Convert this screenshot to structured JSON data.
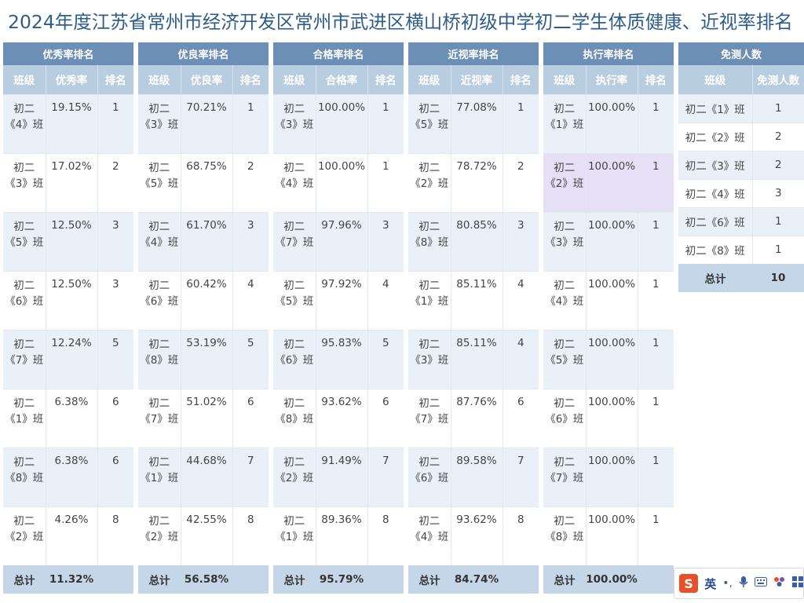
{
  "title": "2024年度江苏省常州市经济开发区常州市武进区横山桥初级中学初二学生体质健康、近视率排名",
  "panels": [
    {
      "title": "优秀率排名",
      "col_class": "班级",
      "col_value": "优秀率",
      "col_rank": "排名",
      "rows": [
        {
          "cls": "初二《4》班",
          "value": "19.15%",
          "rank": "1"
        },
        {
          "cls": "初二《3》班",
          "value": "17.02%",
          "rank": "2"
        },
        {
          "cls": "初二《5》班",
          "value": "12.50%",
          "rank": "3"
        },
        {
          "cls": "初二《6》班",
          "value": "12.50%",
          "rank": "3"
        },
        {
          "cls": "初二《7》班",
          "value": "12.24%",
          "rank": "5"
        },
        {
          "cls": "初二《1》班",
          "value": "6.38%",
          "rank": "6"
        },
        {
          "cls": "初二《8》班",
          "value": "6.38%",
          "rank": "6"
        },
        {
          "cls": "初二《2》班",
          "value": "4.26%",
          "rank": "8"
        }
      ],
      "total_label": "总计",
      "total_value": "11.32%"
    },
    {
      "title": "优良率排名",
      "col_class": "班级",
      "col_value": "优良率",
      "col_rank": "排名",
      "rows": [
        {
          "cls": "初二《3》班",
          "value": "70.21%",
          "rank": "1"
        },
        {
          "cls": "初二《5》班",
          "value": "68.75%",
          "rank": "2"
        },
        {
          "cls": "初二《4》班",
          "value": "61.70%",
          "rank": "3"
        },
        {
          "cls": "初二《6》班",
          "value": "60.42%",
          "rank": "4"
        },
        {
          "cls": "初二《8》班",
          "value": "53.19%",
          "rank": "5"
        },
        {
          "cls": "初二《7》班",
          "value": "51.02%",
          "rank": "6"
        },
        {
          "cls": "初二《1》班",
          "value": "44.68%",
          "rank": "7"
        },
        {
          "cls": "初二《2》班",
          "value": "42.55%",
          "rank": "8"
        }
      ],
      "total_label": "总计",
      "total_value": "56.58%"
    },
    {
      "title": "合格率排名",
      "col_class": "班级",
      "col_value": "合格率",
      "col_rank": "排名",
      "rows": [
        {
          "cls": "初二《3》班",
          "value": "100.00%",
          "rank": "1"
        },
        {
          "cls": "初二《4》班",
          "value": "100.00%",
          "rank": "1"
        },
        {
          "cls": "初二《7》班",
          "value": "97.96%",
          "rank": "3"
        },
        {
          "cls": "初二《5》班",
          "value": "97.92%",
          "rank": "4"
        },
        {
          "cls": "初二《6》班",
          "value": "95.83%",
          "rank": "5"
        },
        {
          "cls": "初二《8》班",
          "value": "93.62%",
          "rank": "6"
        },
        {
          "cls": "初二《2》班",
          "value": "91.49%",
          "rank": "7"
        },
        {
          "cls": "初二《1》班",
          "value": "89.36%",
          "rank": "8"
        }
      ],
      "total_label": "总计",
      "total_value": "95.79%"
    },
    {
      "title": "近视率排名",
      "col_class": "班级",
      "col_value": "近视率",
      "col_rank": "排名",
      "rows": [
        {
          "cls": "初二《5》班",
          "value": "77.08%",
          "rank": "1"
        },
        {
          "cls": "初二《2》班",
          "value": "78.72%",
          "rank": "2"
        },
        {
          "cls": "初二《8》班",
          "value": "80.85%",
          "rank": "3"
        },
        {
          "cls": "初二《1》班",
          "value": "85.11%",
          "rank": "4"
        },
        {
          "cls": "初二《3》班",
          "value": "85.11%",
          "rank": "4"
        },
        {
          "cls": "初二《7》班",
          "value": "87.76%",
          "rank": "6"
        },
        {
          "cls": "初二《6》班",
          "value": "89.58%",
          "rank": "7"
        },
        {
          "cls": "初二《4》班",
          "value": "93.62%",
          "rank": "8"
        }
      ],
      "total_label": "总计",
      "total_value": "84.74%"
    },
    {
      "title": "执行率排名",
      "col_class": "班级",
      "col_value": "执行率",
      "col_rank": "排名",
      "rows": [
        {
          "cls": "初二《1》班",
          "value": "100.00%",
          "rank": "1"
        },
        {
          "cls": "初二《2》班",
          "value": "100.00%",
          "rank": "1"
        },
        {
          "cls": "初二《3》班",
          "value": "100.00%",
          "rank": "1"
        },
        {
          "cls": "初二《4》班",
          "value": "100.00%",
          "rank": "1"
        },
        {
          "cls": "初二《5》班",
          "value": "100.00%",
          "rank": "1"
        },
        {
          "cls": "初二《6》班",
          "value": "100.00%",
          "rank": "1"
        },
        {
          "cls": "初二《7》班",
          "value": "100.00%",
          "rank": "1"
        },
        {
          "cls": "初二《8》班",
          "value": "100.00%",
          "rank": "1"
        }
      ],
      "total_label": "总计",
      "total_value": "100.00%"
    }
  ],
  "exempt": {
    "title": "免测人数",
    "col_class": "班级",
    "col_count": "免测人数",
    "rows": [
      {
        "cls": "初二《1》班",
        "count": "1"
      },
      {
        "cls": "初二《2》班",
        "count": "2"
      },
      {
        "cls": "初二《3》班",
        "count": "2"
      },
      {
        "cls": "初二《4》班",
        "count": "3"
      },
      {
        "cls": "初二《6》班",
        "count": "1"
      },
      {
        "cls": "初二《8》班",
        "count": "1"
      }
    ],
    "total_label": "总计",
    "total_value": "10"
  },
  "ime": {
    "logo": "S",
    "mode": "英",
    "icons": [
      "punctuation-icon",
      "microphone-icon",
      "keyboard-icon",
      "skin-icon",
      "toolbox-icon"
    ]
  }
}
